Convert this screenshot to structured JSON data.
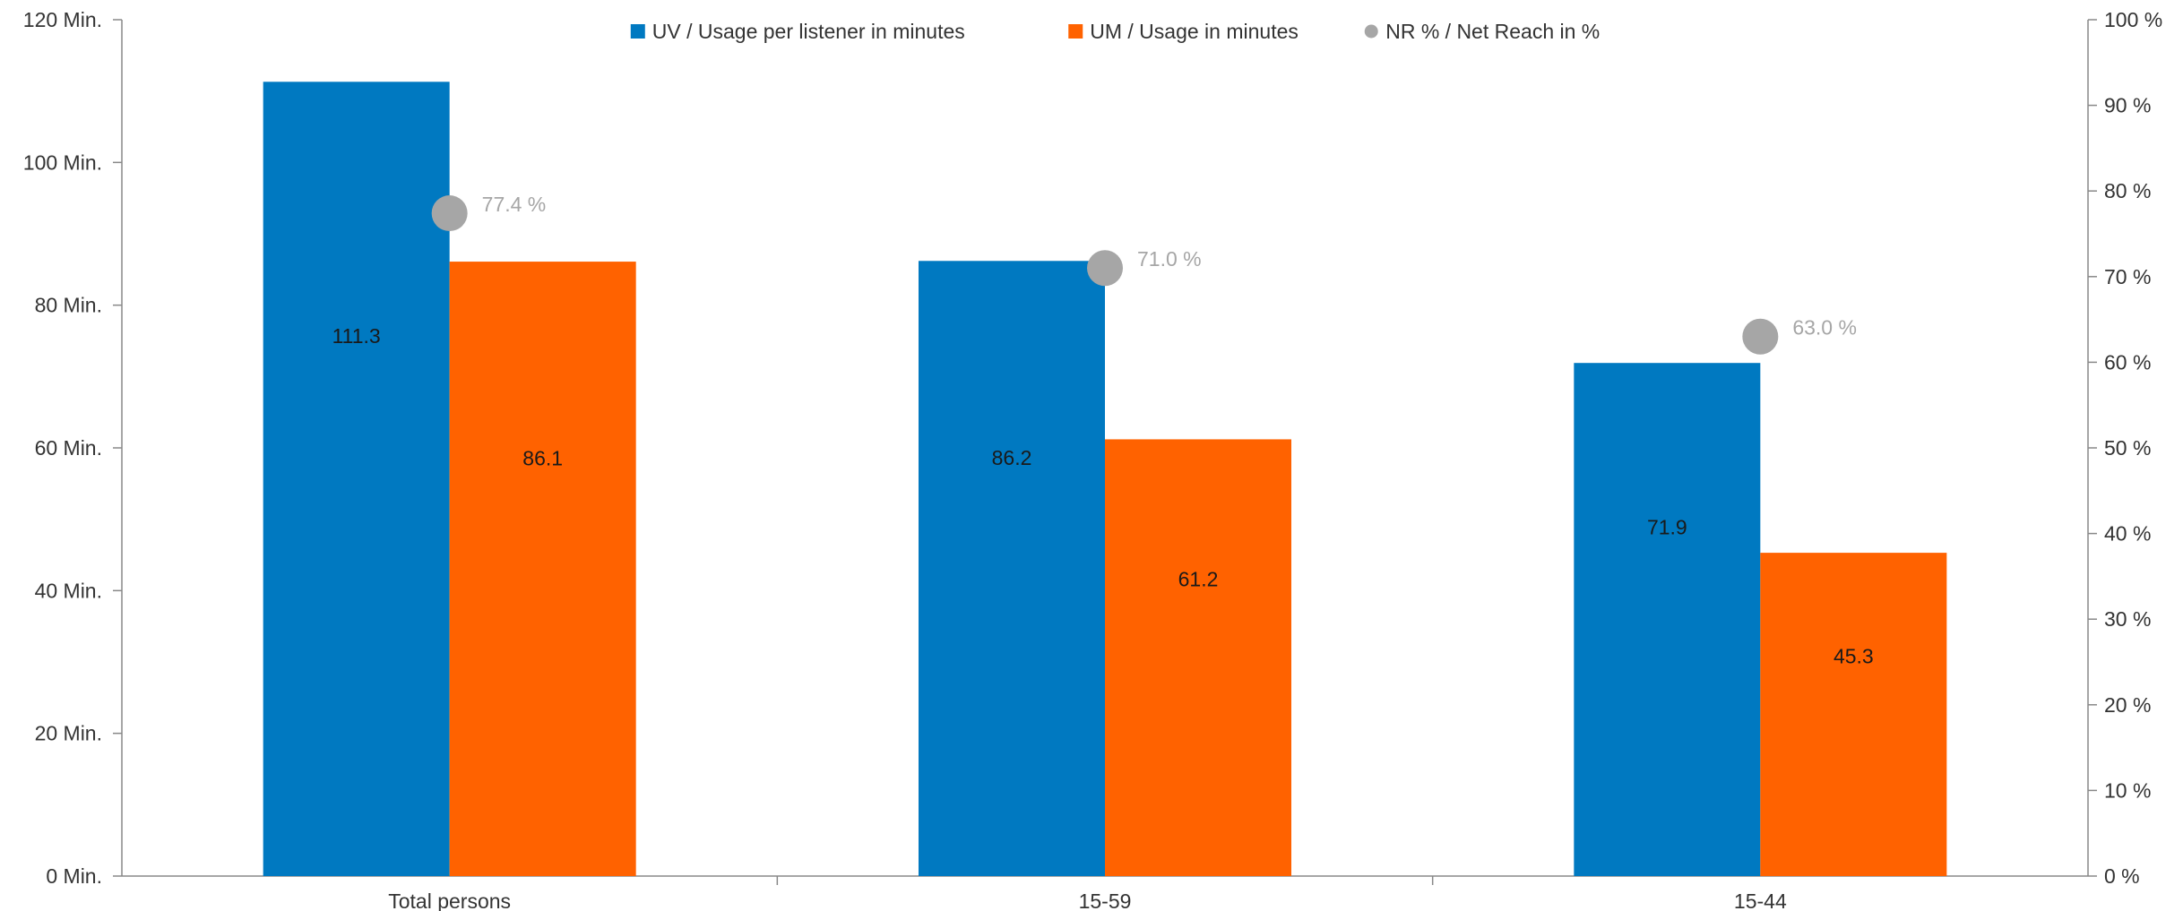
{
  "chart_data": {
    "type": "bar",
    "categories": [
      "Total persons",
      "15-59",
      "15-44"
    ],
    "series": [
      {
        "name": "UV / Usage per listener in minutes",
        "type": "bar",
        "axis": "left",
        "color": "#0079C1",
        "values": [
          111.3,
          86.2,
          71.9
        ],
        "labels": [
          "111.3",
          "86.2",
          "71.9"
        ]
      },
      {
        "name": "UM / Usage in minutes",
        "type": "bar",
        "axis": "left",
        "color": "#FF6200",
        "values": [
          86.1,
          61.2,
          45.3
        ],
        "labels": [
          "86.1",
          "61.2",
          "45.3"
        ]
      },
      {
        "name": "NR % / Net Reach in %",
        "type": "scatter",
        "axis": "right",
        "color": "#A6A6A6",
        "values": [
          77.4,
          71.0,
          63.0
        ],
        "labels": [
          "77.4 %",
          "71.0 %",
          "63.0 %"
        ]
      }
    ],
    "y_left": {
      "ylim": [
        0,
        120
      ],
      "ticks": [
        0,
        20,
        40,
        60,
        80,
        100,
        120
      ],
      "tick_labels": [
        "0 Min.",
        "20 Min.",
        "40 Min.",
        "60 Min.",
        "80 Min.",
        "100 Min.",
        "120 Min."
      ]
    },
    "y_right": {
      "ylim": [
        0,
        100
      ],
      "ticks": [
        0,
        10,
        20,
        30,
        40,
        50,
        60,
        70,
        80,
        90,
        100
      ],
      "tick_labels": [
        "0 %",
        "10 %",
        "20 %",
        "30 %",
        "40 %",
        "50 %",
        "60 %",
        "70 %",
        "80 %",
        "90 %",
        "100 %"
      ]
    },
    "grid": false,
    "legend_position": "top-center",
    "colors": {
      "axis": "#888888",
      "tick_text": "#333333",
      "bar_label": "#1a1a1a",
      "point_label": "#A6A6A6"
    }
  }
}
